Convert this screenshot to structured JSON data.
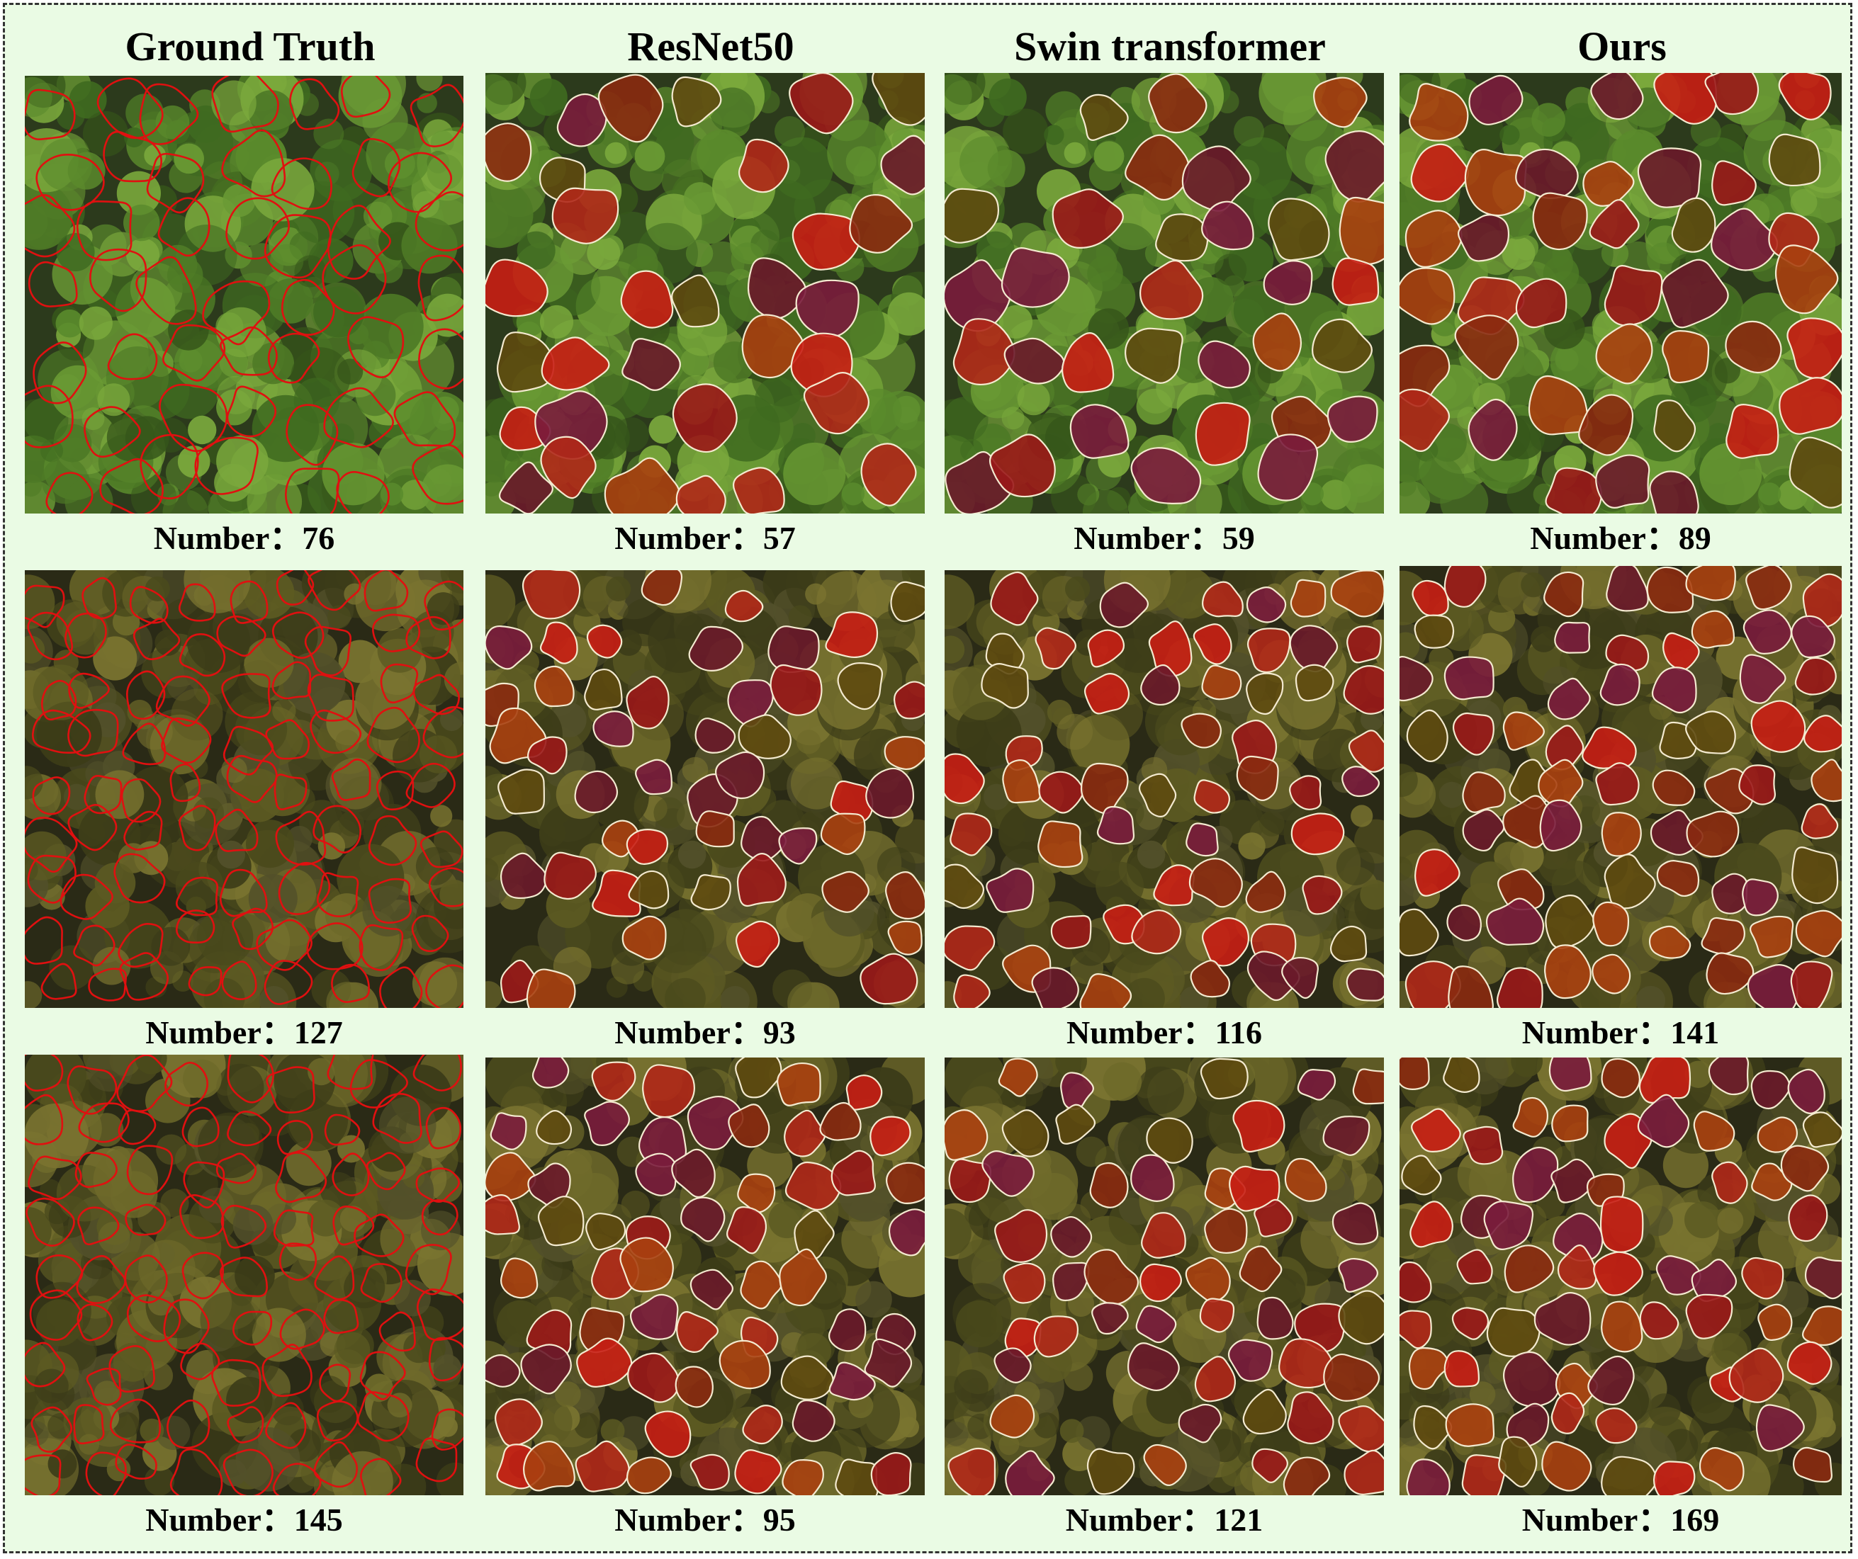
{
  "columns": [
    {
      "title": "Ground Truth",
      "kind": "outline"
    },
    {
      "title": "ResNet50",
      "kind": "filled"
    },
    {
      "title": "Swin transformer",
      "kind": "filled"
    },
    {
      "title": "Ours",
      "kind": "filled"
    }
  ],
  "rows": [
    {
      "captions": [
        "Number：76",
        "Number：57",
        "Number：59",
        "Number：89"
      ],
      "tone": "bright"
    },
    {
      "captions": [
        "Number：127",
        "Number：93",
        "Number：116",
        "Number：141"
      ],
      "tone": "olive"
    },
    {
      "captions": [
        "Number：145",
        "Number：95",
        "Number：121",
        "Number：169"
      ],
      "tone": "olive"
    }
  ],
  "colors": {
    "background": "#eafbe4",
    "border": "#333333",
    "gt_outline": "#e01010",
    "pred_outline": "#f4ead0",
    "pred_fills": [
      "#c81e14",
      "#8a2a10",
      "#7a1c3c",
      "#b02818",
      "#5e4a10",
      "#9a1818",
      "#6a1a2a",
      "#a84010"
    ]
  }
}
